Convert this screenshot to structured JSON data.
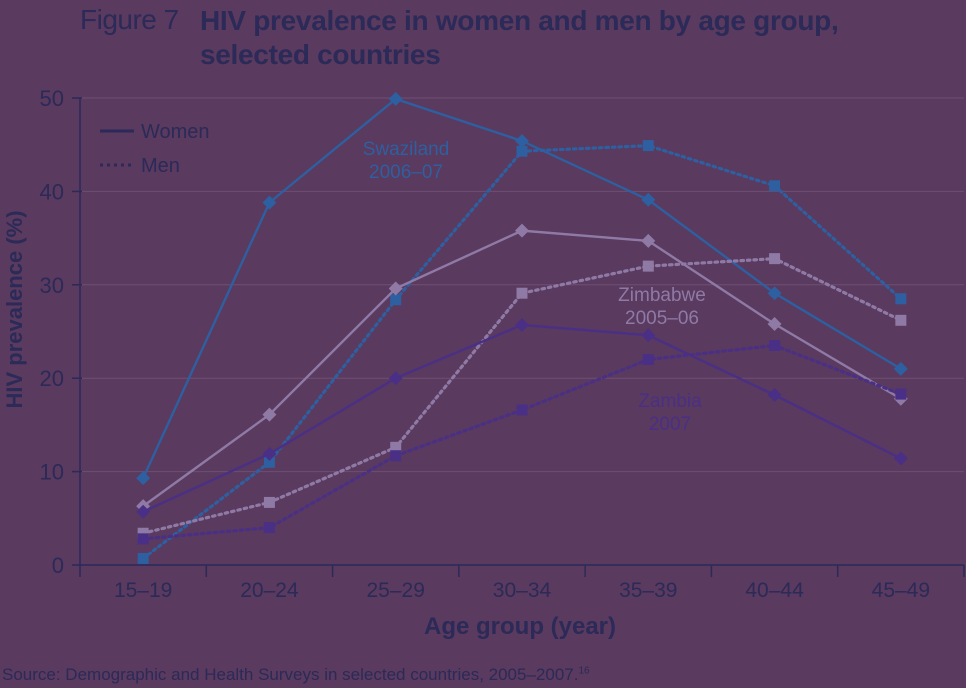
{
  "figure": {
    "number": "Figure 7",
    "title": "HIV prevalence in women and men by age group, selected countries"
  },
  "source": {
    "text": "Source: Demographic and Health Surveys in selected countries, 2005–2007.",
    "ref": "16"
  },
  "colors": {
    "background": "#5a3a5e",
    "axis": "#2b2a58",
    "swaziland": "#2e5fa0",
    "zimbabwe": "#8f7aa6",
    "zambia": "#4a2f86"
  },
  "chart_data": {
    "type": "line",
    "xlabel": "Age group (year)",
    "ylabel": "HIV prevalence (%)",
    "ylim": [
      0,
      50
    ],
    "yticks": [
      0,
      10,
      20,
      30,
      40,
      50
    ],
    "grid": true,
    "legend": {
      "placement": "top-left",
      "entries": [
        {
          "label": "Women",
          "style": "solid"
        },
        {
          "label": "Men",
          "style": "dotted"
        }
      ]
    },
    "categories": [
      "15–19",
      "20–24",
      "25–29",
      "30–34",
      "35–39",
      "40–44",
      "45–49"
    ],
    "annotations": [
      {
        "country": "swaziland",
        "lines": [
          "Swaziland",
          "2006–07"
        ]
      },
      {
        "country": "zimbabwe",
        "lines": [
          "Zimbabwe",
          "2005–06"
        ]
      },
      {
        "country": "zambia",
        "lines": [
          "Zambia",
          "2007"
        ]
      }
    ],
    "series": [
      {
        "country": "swaziland",
        "sex": "women",
        "style": "solid",
        "marker": "diamond",
        "values": [
          9.3,
          38.8,
          49.9,
          45.4,
          39.1,
          29.1,
          21.0
        ]
      },
      {
        "country": "swaziland",
        "sex": "men",
        "style": "dotted",
        "marker": "square",
        "values": [
          0.7,
          11.0,
          28.4,
          44.3,
          44.9,
          40.6,
          28.5
        ]
      },
      {
        "country": "zimbabwe",
        "sex": "women",
        "style": "solid",
        "marker": "diamond",
        "values": [
          6.3,
          16.1,
          29.6,
          35.8,
          34.7,
          25.8,
          17.8
        ]
      },
      {
        "country": "zimbabwe",
        "sex": "men",
        "style": "dotted",
        "marker": "square",
        "values": [
          3.4,
          6.7,
          12.6,
          29.1,
          32.0,
          32.8,
          26.2
        ]
      },
      {
        "country": "zambia",
        "sex": "women",
        "style": "solid",
        "marker": "diamond",
        "values": [
          5.7,
          11.9,
          20.0,
          25.7,
          24.6,
          18.2,
          11.4
        ]
      },
      {
        "country": "zambia",
        "sex": "men",
        "style": "dotted",
        "marker": "square",
        "values": [
          2.8,
          4.0,
          11.7,
          16.6,
          22.0,
          23.5,
          18.3
        ]
      }
    ]
  }
}
